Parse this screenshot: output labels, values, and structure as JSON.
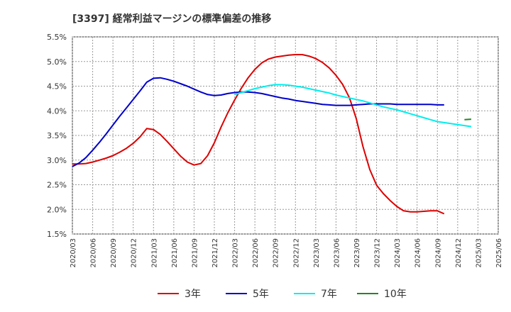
{
  "chart_data": {
    "type": "line",
    "title": "[3397]  経常利益マージンの標準偏差の推移",
    "xlabel": "",
    "ylabel": "",
    "ylim": [
      1.5,
      5.5
    ],
    "yticks": [
      "5.5%",
      "5.0%",
      "4.5%",
      "4.0%",
      "3.5%",
      "3.0%",
      "2.5%",
      "2.0%",
      "1.5%"
    ],
    "ytick_values": [
      5.5,
      5.0,
      4.5,
      4.0,
      3.5,
      3.0,
      2.5,
      2.0,
      1.5
    ],
    "xticks": [
      "2020/03",
      "2020/06",
      "2020/09",
      "2020/12",
      "2021/03",
      "2021/06",
      "2021/09",
      "2021/12",
      "2022/03",
      "2022/06",
      "2022/09",
      "2022/12",
      "2023/03",
      "2023/06",
      "2023/09",
      "2023/12",
      "2024/03",
      "2024/06",
      "2024/09",
      "2024/12",
      "2025/03",
      "2025/06"
    ],
    "grid": true,
    "legend_position": "bottom",
    "series": [
      {
        "name": "3年",
        "color": "#dd0000",
        "start": "2020/03",
        "values": [
          2.92,
          2.92,
          2.93,
          2.96,
          3.0,
          3.04,
          3.09,
          3.16,
          3.24,
          3.34,
          3.47,
          3.64,
          3.62,
          3.52,
          3.38,
          3.23,
          3.08,
          2.96,
          2.9,
          2.93,
          3.09,
          3.35,
          3.67,
          3.96,
          4.22,
          4.46,
          4.67,
          4.84,
          4.97,
          5.05,
          5.09,
          5.11,
          5.13,
          5.14,
          5.14,
          5.11,
          5.06,
          4.98,
          4.87,
          4.72,
          4.53,
          4.26,
          3.84,
          3.27,
          2.81,
          2.49,
          2.32,
          2.18,
          2.06,
          1.97,
          1.95,
          1.95,
          1.96,
          1.97,
          1.97,
          1.91
        ]
      },
      {
        "name": "5年",
        "color": "#0000cc",
        "start": "2020/03",
        "values": [
          2.87,
          2.94,
          3.05,
          3.2,
          3.36,
          3.53,
          3.71,
          3.89,
          4.06,
          4.23,
          4.4,
          4.58,
          4.66,
          4.67,
          4.64,
          4.6,
          4.55,
          4.5,
          4.44,
          4.38,
          4.33,
          4.31,
          4.32,
          4.35,
          4.37,
          4.38,
          4.38,
          4.37,
          4.35,
          4.32,
          4.29,
          4.26,
          4.24,
          4.21,
          4.19,
          4.17,
          4.15,
          4.13,
          4.12,
          4.11,
          4.11,
          4.11,
          4.12,
          4.13,
          4.14,
          4.14,
          4.14,
          4.14,
          4.13,
          4.13,
          4.13,
          4.13,
          4.13,
          4.13,
          4.12,
          4.12
        ]
      },
      {
        "name": "7年",
        "color": "#00eeee",
        "start": "2022/03",
        "values": [
          4.33,
          4.37,
          4.41,
          4.45,
          4.48,
          4.51,
          4.53,
          4.53,
          4.52,
          4.5,
          4.48,
          4.45,
          4.42,
          4.39,
          4.36,
          4.32,
          4.29,
          4.26,
          4.23,
          4.2,
          4.16,
          4.12,
          4.08,
          4.05,
          4.02,
          3.98,
          3.94,
          3.9,
          3.86,
          3.82,
          3.78,
          3.76,
          3.74,
          3.72,
          3.7,
          3.68
        ]
      },
      {
        "name": "10年",
        "color": "#228822",
        "start": "2025/01",
        "values": [
          3.82,
          3.83
        ]
      }
    ]
  }
}
